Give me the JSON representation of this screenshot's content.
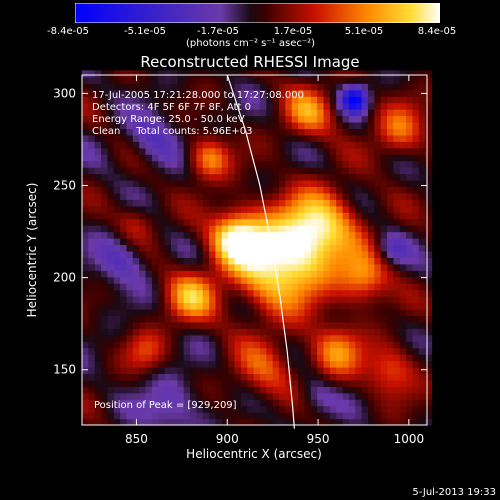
{
  "chart_data": {
    "type": "heatmap",
    "title": "Reconstructed RHESSI Image",
    "xlabel": "Heliocentric X (arcsec)",
    "ylabel": "Heliocentric Y (arcsec)",
    "xlim": [
      820,
      1010
    ],
    "ylim": [
      120,
      310
    ],
    "x_ticks": [
      850,
      900,
      950,
      1000
    ],
    "y_ticks": [
      150,
      200,
      250,
      300
    ],
    "colorbar": {
      "ticks": [
        "-8.4e-05",
        "-5.1e-05",
        "-1.7e-05",
        "1.7e-05",
        "5.1e-05",
        "8.4e-05"
      ],
      "units": "(photons cm⁻² s⁻¹ asec⁻²)",
      "range": [
        -8.4e-05,
        8.4e-05
      ]
    },
    "annotations": [
      "17-Jul-2005 17:21:28.000 to 17:27:08.000",
      "Detectors: 4F 5F 6F 7F 8F, Att 0",
      "Energy Range: 25.0 - 50.0 keV",
      "Clean     Total counts: 5.96E+03"
    ],
    "peak_label": "Position of Peak = [929,209]",
    "peak": [
      929,
      209
    ],
    "limb": [
      [
        900,
        310
      ],
      [
        910,
        280
      ],
      [
        918,
        250
      ],
      [
        924,
        220
      ],
      [
        929,
        190
      ],
      [
        933,
        160
      ],
      [
        936,
        130
      ],
      [
        937,
        118
      ]
    ],
    "sources": [
      {
        "x": 929,
        "y": 209,
        "v": 1.0,
        "s": 18
      },
      {
        "x": 905,
        "y": 222,
        "v": 0.85,
        "s": 10
      },
      {
        "x": 952,
        "y": 228,
        "v": 0.75,
        "s": 14
      },
      {
        "x": 975,
        "y": 200,
        "v": 0.6,
        "s": 10
      },
      {
        "x": 960,
        "y": 160,
        "v": 0.55,
        "s": 10
      },
      {
        "x": 880,
        "y": 190,
        "v": 0.65,
        "s": 10
      },
      {
        "x": 890,
        "y": 265,
        "v": 0.6,
        "s": 8
      },
      {
        "x": 945,
        "y": 290,
        "v": 0.55,
        "s": 10
      },
      {
        "x": 995,
        "y": 280,
        "v": 0.5,
        "s": 10
      },
      {
        "x": 990,
        "y": 150,
        "v": 0.45,
        "s": 10
      },
      {
        "x": 920,
        "y": 150,
        "v": 0.4,
        "s": 12
      },
      {
        "x": 850,
        "y": 230,
        "v": 0.3,
        "s": 8
      },
      {
        "x": 855,
        "y": 160,
        "v": 0.35,
        "s": 8
      },
      {
        "x": 842,
        "y": 210,
        "v": -0.35,
        "s": 10
      },
      {
        "x": 860,
        "y": 275,
        "v": -0.35,
        "s": 10
      },
      {
        "x": 970,
        "y": 297,
        "v": -0.9,
        "s": 5
      },
      {
        "x": 870,
        "y": 130,
        "v": -0.3,
        "s": 12
      },
      {
        "x": 990,
        "y": 215,
        "v": -0.3,
        "s": 6
      },
      {
        "x": 948,
        "y": 135,
        "v": -0.25,
        "s": 8
      }
    ]
  },
  "footer": {
    "date": "5-Jul-2013 19:33"
  }
}
